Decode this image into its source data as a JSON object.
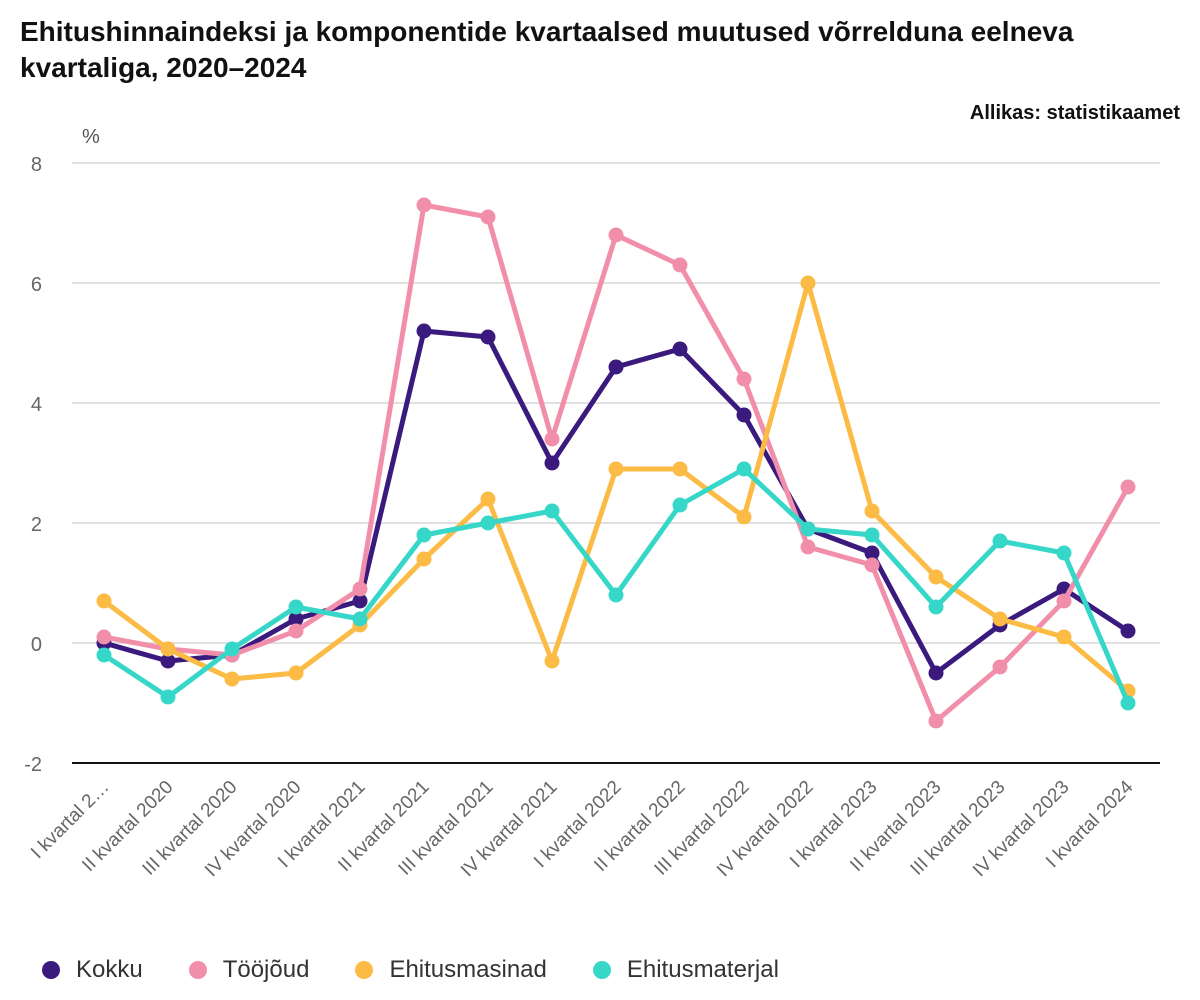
{
  "chart_data": {
    "type": "line",
    "title": "Ehitushinnaindeksi ja komponentide kvartaalsed muutused võrrelduna eelneva kvartaliga, 2020–2024",
    "source": "Allikas: statistikaamet",
    "ylabel": "%",
    "xlabel": "",
    "ylim": [
      -2,
      8
    ],
    "yticks": [
      "8",
      "6",
      "4",
      "2",
      "0",
      "-2"
    ],
    "grid": true,
    "legend_position": "bottom-left",
    "categories": [
      "I kvartal 2…",
      "II kvartal 2020",
      "III kvartal 2020",
      "IV kvartal 2020",
      "I kvartal 2021",
      "II kvartal 2021",
      "III kvartal 2021",
      "IV kvartal 2021",
      "I kvartal 2022",
      "II kvartal 2022",
      "III kvartal 2022",
      "IV kvartal 2022",
      "I kvartal 2023",
      "II kvartal 2023",
      "III kvartal 2023",
      "IV kvartal 2023",
      "I kvartal 2024"
    ],
    "series": [
      {
        "name": "Kokku",
        "color": "#3b1a7e",
        "values": [
          0.0,
          -0.3,
          -0.2,
          0.4,
          0.7,
          5.2,
          5.1,
          3.0,
          4.6,
          4.9,
          3.8,
          1.9,
          1.5,
          -0.5,
          0.3,
          0.9,
          0.2
        ]
      },
      {
        "name": "Tööjõud",
        "color": "#f18fab",
        "values": [
          0.1,
          -0.1,
          -0.2,
          0.2,
          0.9,
          7.3,
          7.1,
          3.4,
          6.8,
          6.3,
          4.4,
          1.6,
          1.3,
          -1.3,
          -0.4,
          0.7,
          2.6
        ]
      },
      {
        "name": "Ehitusmasinad",
        "color": "#fbbb44",
        "values": [
          0.7,
          -0.1,
          -0.6,
          -0.5,
          0.3,
          1.4,
          2.4,
          -0.3,
          2.9,
          2.9,
          2.1,
          6.0,
          2.2,
          1.1,
          0.4,
          0.1,
          -0.8
        ]
      },
      {
        "name": "Ehitusmaterjal",
        "color": "#36d7c8",
        "values": [
          -0.2,
          -0.9,
          -0.1,
          0.6,
          0.4,
          1.8,
          2.0,
          2.2,
          0.8,
          2.3,
          2.9,
          1.9,
          1.8,
          0.6,
          1.7,
          1.5,
          -1.0
        ]
      }
    ]
  }
}
